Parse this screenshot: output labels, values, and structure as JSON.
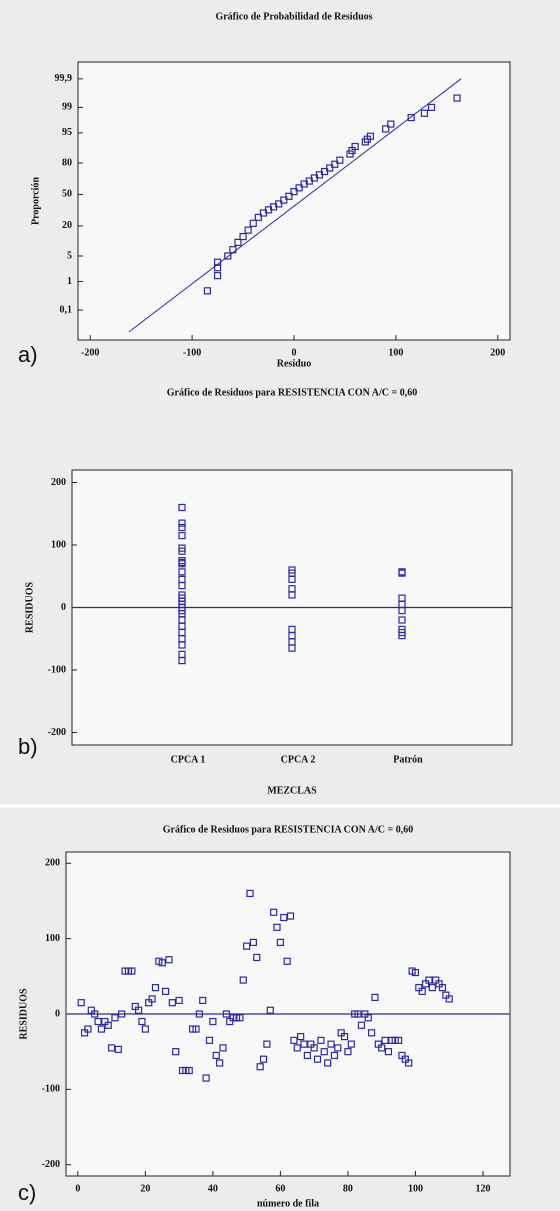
{
  "chart_data": [
    {
      "type": "probability",
      "panel_label": "a)",
      "title": "Gráfico de Probabilidad de Residuos",
      "x_label": "Residuo",
      "y_label": "Proporción",
      "x": [
        -85,
        -75,
        -75,
        -75,
        -65,
        -60,
        -55,
        -50,
        -45,
        -40,
        -35,
        -30,
        -25,
        -20,
        -15,
        -10,
        -5,
        0,
        5,
        10,
        15,
        20,
        25,
        30,
        35,
        40,
        45,
        55,
        57,
        60,
        70,
        72,
        75,
        90,
        95,
        115,
        128,
        135,
        160
      ],
      "values": [
        0.5,
        1.5,
        2.5,
        3.5,
        5,
        7,
        10,
        13,
        17,
        22,
        27,
        31,
        34,
        37,
        40,
        44,
        48,
        53,
        57,
        61,
        64,
        67,
        70,
        73,
        76,
        79,
        82,
        86,
        88,
        90,
        92,
        93,
        94,
        96,
        97,
        98,
        98.5,
        99,
        99.5
      ],
      "fit_line": {
        "x": [
          -162,
          164
        ],
        "values": [
          0.012,
          99.9
        ]
      },
      "xlim": [
        -212,
        212
      ],
      "xticks": [
        -200,
        -100,
        0,
        100,
        200
      ],
      "ylim": [
        0.005,
        99.98
      ],
      "yticks": [
        {
          "value": 0.1,
          "label": "0,1"
        },
        1,
        5,
        20,
        50,
        80,
        95,
        99,
        {
          "value": 99.9,
          "label": "99,9"
        }
      ],
      "color": "#2a2a9c"
    },
    {
      "type": "strip",
      "panel_label": "b)",
      "title": "Gráfico de Residuos para RESISTENCIA CON A/C = 0,60",
      "x_label": "MEZCLAS",
      "y_label": "RESIDUOS",
      "categories": [
        "CPCA 1",
        "CPCA 2",
        "Patrón"
      ],
      "values": [
        [
          160,
          135,
          128,
          115,
          95,
          90,
          75,
          72,
          70,
          57,
          45,
          35,
          20,
          15,
          10,
          5,
          0,
          -5,
          -10,
          -20,
          -30,
          -40,
          -50,
          -60,
          -75,
          -85
        ],
        [
          60,
          55,
          45,
          30,
          20,
          -35,
          -45,
          -55,
          -65
        ],
        [
          57,
          55,
          15,
          5,
          -5,
          -20,
          -35,
          -40,
          -45
        ]
      ],
      "ylim": [
        -220,
        220
      ],
      "yticks": [
        -200,
        -100,
        0,
        100,
        200
      ],
      "reference_line": 0,
      "color": "#2a2a9c"
    },
    {
      "type": "scatter",
      "panel_label": "c)",
      "title": "Gráfico de Residuos para RESISTENCIA CON A/C = 0,60",
      "x_label": "número de fila",
      "y_label": "RESIDUOS",
      "x": [
        1,
        2,
        3,
        4,
        5,
        6,
        7,
        8,
        9,
        10,
        11,
        12,
        13,
        14,
        15,
        16,
        17,
        18,
        19,
        20,
        21,
        22,
        23,
        24,
        25,
        26,
        27,
        28,
        29,
        30,
        31,
        32,
        33,
        34,
        35,
        36,
        37,
        38,
        39,
        40,
        41,
        42,
        43,
        44,
        45,
        46,
        47,
        48,
        49,
        50,
        51,
        52,
        53,
        54,
        55,
        56,
        57,
        58,
        59,
        60,
        61,
        62,
        63,
        64,
        65,
        66,
        67,
        68,
        69,
        70,
        71,
        72,
        73,
        74,
        75,
        76,
        77,
        78,
        79,
        80,
        81,
        82,
        83,
        84,
        85,
        86,
        87,
        88,
        89,
        90,
        91,
        92,
        93,
        94,
        95,
        96,
        97,
        98,
        99,
        100,
        101,
        102,
        103,
        104,
        105,
        106,
        107,
        108,
        109,
        110
      ],
      "values": [
        15,
        -25,
        -20,
        5,
        0,
        -10,
        -20,
        -10,
        -15,
        -45,
        -5,
        -47,
        0,
        57,
        57,
        57,
        10,
        5,
        -10,
        -20,
        15,
        20,
        35,
        70,
        68,
        30,
        72,
        15,
        -50,
        18,
        -75,
        -75,
        -75,
        -20,
        -20,
        0,
        18,
        -85,
        -35,
        -10,
        -55,
        -65,
        -45,
        0,
        -10,
        -5,
        -5,
        -5,
        45,
        90,
        160,
        95,
        75,
        -70,
        -60,
        -40,
        5,
        135,
        115,
        95,
        128,
        70,
        130,
        -35,
        -45,
        -30,
        -40,
        -55,
        -40,
        -45,
        -60,
        -35,
        -50,
        -65,
        -40,
        -55,
        -45,
        -25,
        -30,
        -50,
        -40,
        0,
        0,
        -15,
        0,
        -5,
        -25,
        22,
        -40,
        -45,
        -35,
        -50,
        -35,
        -35,
        -35,
        -55,
        -60,
        -65,
        57,
        55,
        35,
        30,
        40,
        45,
        35,
        45,
        40,
        35,
        25,
        20
      ],
      "xlim": [
        -3.5,
        128
      ],
      "xticks": [
        0,
        20,
        40,
        60,
        80,
        100,
        120
      ],
      "ylim": [
        -215,
        215
      ],
      "yticks": [
        -200,
        -100,
        0,
        100,
        200
      ],
      "reference_line": 0,
      "color": "#2a2a9c"
    }
  ]
}
